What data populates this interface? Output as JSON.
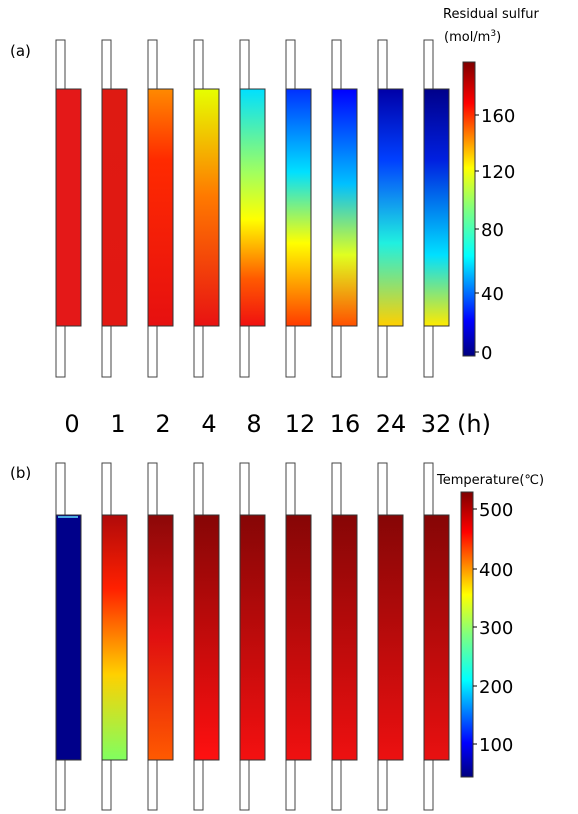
{
  "panel_a": {
    "label": "(a)",
    "colorbar": {
      "title_line1": "Residual sulfur",
      "title_line2_prefix": "(mol/m",
      "title_line2_sup": "3",
      "title_line2_suffix": ")",
      "ticks": [
        "160",
        "120",
        "80",
        "40",
        "0"
      ]
    },
    "columns": [
      {
        "time": "0"
      },
      {
        "time": "1"
      },
      {
        "time": "2"
      },
      {
        "time": "4"
      },
      {
        "time": "8"
      },
      {
        "time": "12"
      },
      {
        "time": "16"
      },
      {
        "time": "24"
      },
      {
        "time": "32"
      }
    ],
    "time_unit": "(h)"
  },
  "panel_b": {
    "label": "(b)",
    "colorbar": {
      "title": "Temperature(℃)",
      "ticks": [
        "500",
        "400",
        "300",
        "200",
        "100"
      ]
    }
  },
  "colors": {
    "jet": [
      "#00007f",
      "#0000ff",
      "#00bfff",
      "#40ffbf",
      "#ffff00",
      "#ff8000",
      "#ff0000",
      "#7f0000"
    ]
  }
}
